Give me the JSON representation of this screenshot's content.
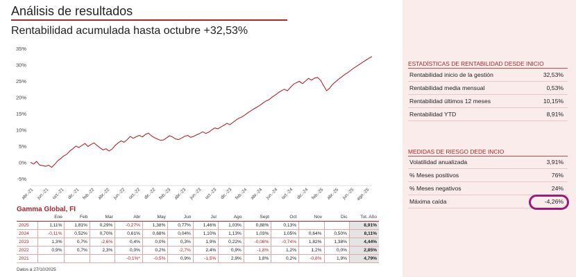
{
  "header": {
    "title": "Análisis de resultados",
    "subtitle": "Rentabilidad acumulada hasta octubre +32,53%"
  },
  "colors": {
    "accent": "#b3232c",
    "panel_bg": "#fbecec",
    "highlight": "#9c1a78",
    "total_cell": "#e4e4e4"
  },
  "chart_data": {
    "type": "line",
    "ylim": [
      -5,
      35
    ],
    "yticks": [
      -5,
      0,
      5,
      10,
      15,
      20,
      25,
      30,
      35
    ],
    "ytick_labels": [
      "-5%",
      "0%",
      "5%",
      "10%",
      "15%",
      "20%",
      "25%",
      "30%",
      "35%"
    ],
    "xtick_labels": [
      "abr.-21",
      "jun.-21",
      "oct.-21",
      "dic.-21",
      "feb.-22",
      "abr.-22",
      "jun.-22",
      "oct.-22",
      "dic.-22",
      "feb.-23",
      "abr.-23",
      "jun.-23",
      "oct.-23",
      "dic.-23",
      "feb.-24",
      "abr.-24",
      "jun.-24",
      "oct.-24",
      "dic.-24",
      "feb.-25",
      "abr.-25",
      "jun.-25",
      "ago.-25"
    ],
    "grid": false,
    "legend": "none",
    "line_color": "#b3232c",
    "series": [
      {
        "values": [
          0,
          -0.5,
          0.3,
          -0.8,
          -1,
          -1.2,
          -0.9,
          -1.5,
          -0.6,
          0.5,
          1.2,
          2,
          2.5,
          3.5,
          4.2,
          5,
          4.6,
          5.2,
          5.8,
          4.9,
          5.5,
          6,
          5.2,
          4.5,
          3.8,
          4.2,
          3.5,
          4.1,
          5.2,
          6,
          6.6,
          6.2,
          7,
          8,
          7.4,
          7.9,
          8.3,
          7.8,
          8.6,
          9,
          8.2,
          7.6,
          7.2,
          6.8,
          6.9,
          7.5,
          8.2,
          7.8,
          7.2,
          7,
          7.5,
          8,
          8.3,
          7.7,
          8,
          8.5,
          8.9,
          9.4,
          8.9,
          9.3,
          10,
          10.6,
          10.3,
          10.9,
          11.4,
          12,
          11.6,
          12.3,
          13,
          13.6,
          14,
          14.6,
          15.3,
          15.9,
          16.5,
          17,
          17.6,
          18.3,
          18.9,
          19.3,
          20.1,
          20.7,
          21.4,
          22,
          22.5,
          22,
          23,
          24,
          24.5,
          24.9,
          24.2,
          25,
          25.8,
          25.3,
          25.9,
          26.1,
          25.2,
          23.6,
          22,
          22.8,
          24,
          24.8,
          25.6,
          26.3,
          27,
          27.6,
          28.3,
          29,
          29.6,
          30.2,
          30.8,
          31.4,
          32,
          32.53
        ]
      }
    ]
  },
  "table": {
    "fund_name": "Gamma Global, FI",
    "headers": [
      "",
      "Ene",
      "Feb",
      "Mar",
      "Abr",
      "May",
      "Jun",
      "Jul",
      "Ago",
      "Sept",
      "Oct",
      "Nov",
      "Dic",
      "Tot. Año"
    ],
    "rows": [
      {
        "year": "2025",
        "cells": [
          "1,11%",
          "1,81%",
          "0,29%",
          "-0,27%",
          "1,38%",
          "0,77%",
          "1,46%",
          "1,03%",
          "0,88%",
          "0,13%",
          "",
          ""
        ],
        "total": "8,91%"
      },
      {
        "year": "2024",
        "cells": [
          "-0,11%",
          "0,52%",
          "0,70%",
          "0,61%",
          "0,68%",
          "0,04%",
          "1,10%",
          "1,13%",
          "1,03%",
          "1,05%",
          "0,64%",
          "0,50%"
        ],
        "total": "8,11%"
      },
      {
        "year": "2023",
        "cells": [
          "1,3%",
          "0,7%",
          "-2,6%",
          "0,4%",
          "0,0%",
          "0,3%",
          "1,9%",
          "0,22%",
          "-0,08%",
          "-0,74%",
          "1,82%",
          "1,38%"
        ],
        "total": "4,44%"
      },
      {
        "year": "2022",
        "cells": [
          "0,9%",
          "0,7%",
          "2,3%",
          "0,0%",
          "0,2%",
          "-2,7%",
          "2,4%",
          "0,9%",
          "-1,8%",
          "1,2%",
          "1,2%",
          "0,0%"
        ],
        "total": "2,85%"
      },
      {
        "year": "2021",
        "cells": [
          "",
          "",
          "",
          "-0,1%*",
          "-0,5%",
          "0,9%",
          "-1,5%",
          "2,9%",
          "1,8%",
          "0,2%",
          "-0,8%",
          "1,9%"
        ],
        "total": "4,79%"
      }
    ],
    "date_note": "Datos a 27/10/2025"
  },
  "stats": {
    "return_title": "ESTADÍSTICAS DE RENTABILIDAD DESDE INICIO",
    "return_items": [
      {
        "label": "Rentabilidad inicio de la gestión",
        "value": "32,53%"
      },
      {
        "label": "Rentabilidad media mensual",
        "value": "0,53%"
      },
      {
        "label": "Rentabilidad últimos 12 meses",
        "value": "10,15%"
      },
      {
        "label": "Rentabilidad YTD",
        "value": "8,91%"
      }
    ],
    "risk_title": "MEDIDAS DE RIESGO DEDE INCIO",
    "risk_items": [
      {
        "label": "Volatilidad anualizada",
        "value": "3,91%"
      },
      {
        "label": "% Meses positivos",
        "value": "76%"
      },
      {
        "label": "% Meses negativos",
        "value": "24%"
      },
      {
        "label": "Máxima caída",
        "value": "-4,26%"
      }
    ]
  }
}
